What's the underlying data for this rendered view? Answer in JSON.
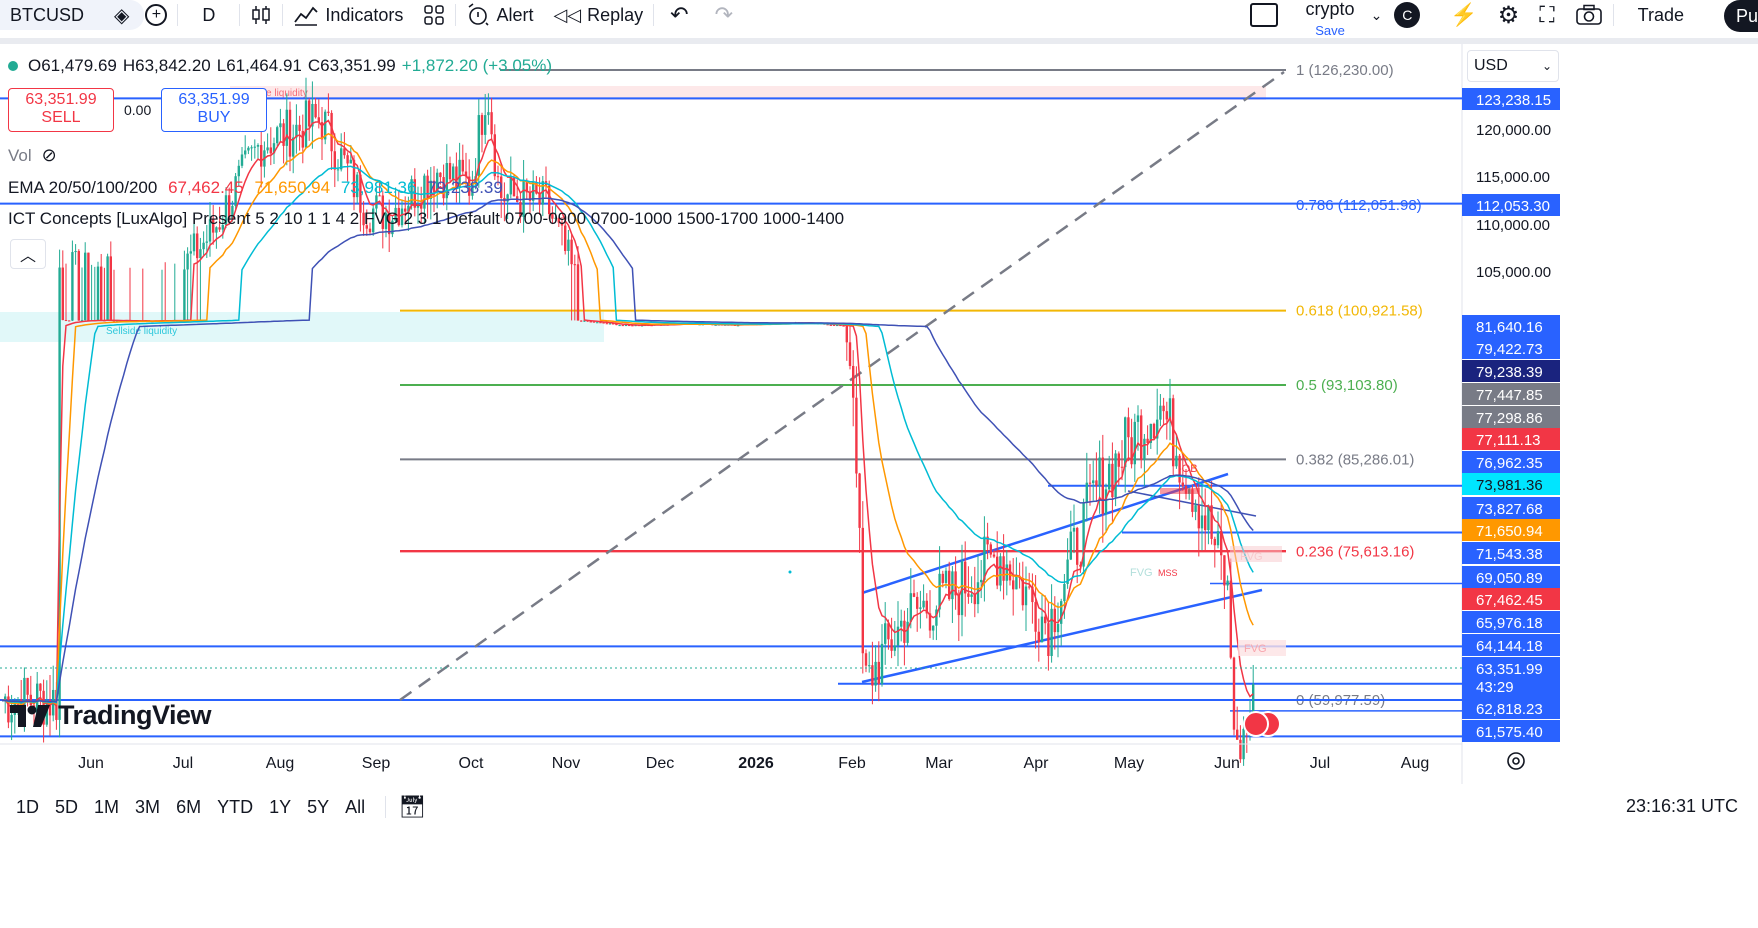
{
  "toolbar": {
    "symbol": "BTCUSD",
    "interval": "D",
    "indicators_label": "Indicators",
    "alert_label": "Alert",
    "replay_label": "Replay",
    "layout_name": "crypto",
    "save_label": "Save",
    "avatar_letter": "C",
    "trade_label": "Trade",
    "publish_label": "Pu"
  },
  "legend": {
    "ohlc": {
      "o": "O61,479.69",
      "h": "H63,842.20",
      "l": "L61,464.91",
      "c": "C63,351.99",
      "chg": "+1,872.20 (+3.05%)"
    },
    "sell_price": "63,351.99",
    "sell_label": "SELL",
    "spread": "0.00",
    "buy_price": "63,351.99",
    "buy_label": "BUY",
    "vol_label": "Vol",
    "ema_label": "EMA 20/50/100/200",
    "ema_values": [
      "67,462.45",
      "71,650.94",
      "73,981.36",
      "79,238.39"
    ],
    "ict_label": "ICT Concepts [LuxAlgo] Present 5 2 10 1 1 4 2 FVG 2 3 1 Default 0700-0900 0700-1000 1500-1700 1000-1400"
  },
  "currency": "USD",
  "logo_text": "TradingView",
  "chart_data": {
    "type": "candlestick",
    "symbol": "BTCUSD",
    "interval": "1D",
    "x_ticks": [
      "Jun",
      "Jul",
      "Aug",
      "Sep",
      "Oct",
      "Nov",
      "Dec",
      "2026",
      "Feb",
      "Mar",
      "Apr",
      "May",
      "Jun",
      "Jul",
      "Aug"
    ],
    "x_months_range": [
      "2025-06",
      "2026-08"
    ],
    "price_axis_ticks": [
      "120,000.00",
      "115,000.00",
      "110,000.00",
      "105,000.00"
    ],
    "y_scale": "split",
    "current_countdown": "43:29",
    "close_path": [
      [
        "2025-05-20",
        105000
      ],
      [
        "2025-06-05",
        104500
      ],
      [
        "2025-06-20",
        101000
      ],
      [
        "2025-07-10",
        109000
      ],
      [
        "2025-07-25",
        118500
      ],
      [
        "2025-08-14",
        121000
      ],
      [
        "2025-08-28",
        111500
      ],
      [
        "2025-09-05",
        111000
      ],
      [
        "2025-09-20",
        115500
      ],
      [
        "2025-10-01",
        114000
      ],
      [
        "2025-10-06",
        125000
      ],
      [
        "2025-10-10",
        113000
      ],
      [
        "2025-10-25",
        112000
      ],
      [
        "2025-11-05",
        103000
      ],
      [
        "2025-11-20",
        85000
      ],
      [
        "2025-12-10",
        91000
      ],
      [
        "2025-12-25",
        87500
      ],
      [
        "2026-01-14",
        96000
      ],
      [
        "2026-01-25",
        88000
      ],
      [
        "2026-02-02",
        78000
      ],
      [
        "2026-02-05",
        64000
      ],
      [
        "2026-02-20",
        67500
      ],
      [
        "2026-03-05",
        68500
      ],
      [
        "2026-03-20",
        70500
      ],
      [
        "2026-04-05",
        67000
      ],
      [
        "2026-04-20",
        73500
      ],
      [
        "2026-05-10",
        78000
      ],
      [
        "2026-05-25",
        72000
      ],
      [
        "2026-06-01",
        69000
      ],
      [
        "2026-06-04",
        60500
      ],
      [
        "2026-06-10",
        63351.99
      ]
    ],
    "fib_levels": [
      {
        "label": "1 (126,230.00)",
        "ratio": 1,
        "value": 126230.0,
        "color": "#787b86"
      },
      {
        "label": "0.786 (112,051.98)",
        "ratio": 0.786,
        "value": 112051.98,
        "color": "#2962ff"
      },
      {
        "label": "0.618 (100,921.58)",
        "ratio": 0.618,
        "value": 100921.58,
        "color": "#f2b705"
      },
      {
        "label": "0.5 (93,103.80)",
        "ratio": 0.5,
        "value": 93103.8,
        "color": "#4caf50"
      },
      {
        "label": "0.382 (85,286.01)",
        "ratio": 0.382,
        "value": 85286.01,
        "color": "#787b86"
      },
      {
        "label": "0.236 (75,613.16)",
        "ratio": 0.236,
        "value": 75613.16,
        "color": "#f23645"
      },
      {
        "label": "0 (59,977.59)",
        "ratio": 0,
        "value": 59977.59,
        "color": "#787b86"
      }
    ],
    "price_labels": [
      {
        "text": "123,238.15",
        "bg": "#2962ff",
        "fg": "#ffffff"
      },
      {
        "text": "112,053.30",
        "bg": "#2962ff",
        "fg": "#ffffff"
      },
      {
        "text": "81,640.16",
        "bg": "#2962ff",
        "fg": "#ffffff"
      },
      {
        "text": "79,422.73",
        "bg": "#2962ff",
        "fg": "#ffffff"
      },
      {
        "text": "79,238.39",
        "bg": "#1a237e",
        "fg": "#ffffff"
      },
      {
        "text": "77,447.85",
        "bg": "#787b86",
        "fg": "#ffffff"
      },
      {
        "text": "77,298.86",
        "bg": "#787b86",
        "fg": "#ffffff"
      },
      {
        "text": "77,111.13",
        "bg": "#f23645",
        "fg": "#ffffff"
      },
      {
        "text": "76,962.35",
        "bg": "#2962ff",
        "fg": "#ffffff"
      },
      {
        "text": "73,981.36",
        "bg": "#00e5ff",
        "fg": "#131722"
      },
      {
        "text": "73,827.68",
        "bg": "#2962ff",
        "fg": "#ffffff"
      },
      {
        "text": "71,650.94",
        "bg": "#ff9800",
        "fg": "#ffffff"
      },
      {
        "text": "71,543.38",
        "bg": "#2962ff",
        "fg": "#ffffff"
      },
      {
        "text": "69,050.89",
        "bg": "#2962ff",
        "fg": "#ffffff"
      },
      {
        "text": "67,462.45",
        "bg": "#f23645",
        "fg": "#ffffff"
      },
      {
        "text": "65,976.18",
        "bg": "#2962ff",
        "fg": "#ffffff"
      },
      {
        "text": "64,144.18",
        "bg": "#2962ff",
        "fg": "#ffffff"
      },
      {
        "text": "63,351.99",
        "bg": "#2962ff",
        "fg": "#ffffff"
      },
      {
        "text": "62,818.23",
        "bg": "#2962ff",
        "fg": "#ffffff"
      },
      {
        "text": "61,575.40",
        "bg": "#2962ff",
        "fg": "#ffffff"
      }
    ],
    "annotations": [
      "-OB",
      "FVG",
      "MSS",
      "FVG",
      "FVG",
      "Buyside liquidity",
      "Sellside liquidity"
    ],
    "ema_colors": {
      "ema20": "#f23645",
      "ema50": "#ff9800",
      "ema100": "#00bcd4",
      "ema200": "#3f51b5"
    },
    "up_color": "#22ab94",
    "down_color": "#f23645"
  },
  "bottom": {
    "ranges": [
      "1D",
      "5D",
      "1M",
      "3M",
      "6M",
      "YTD",
      "1Y",
      "5Y",
      "All"
    ],
    "time": "23:16:31 UTC"
  }
}
